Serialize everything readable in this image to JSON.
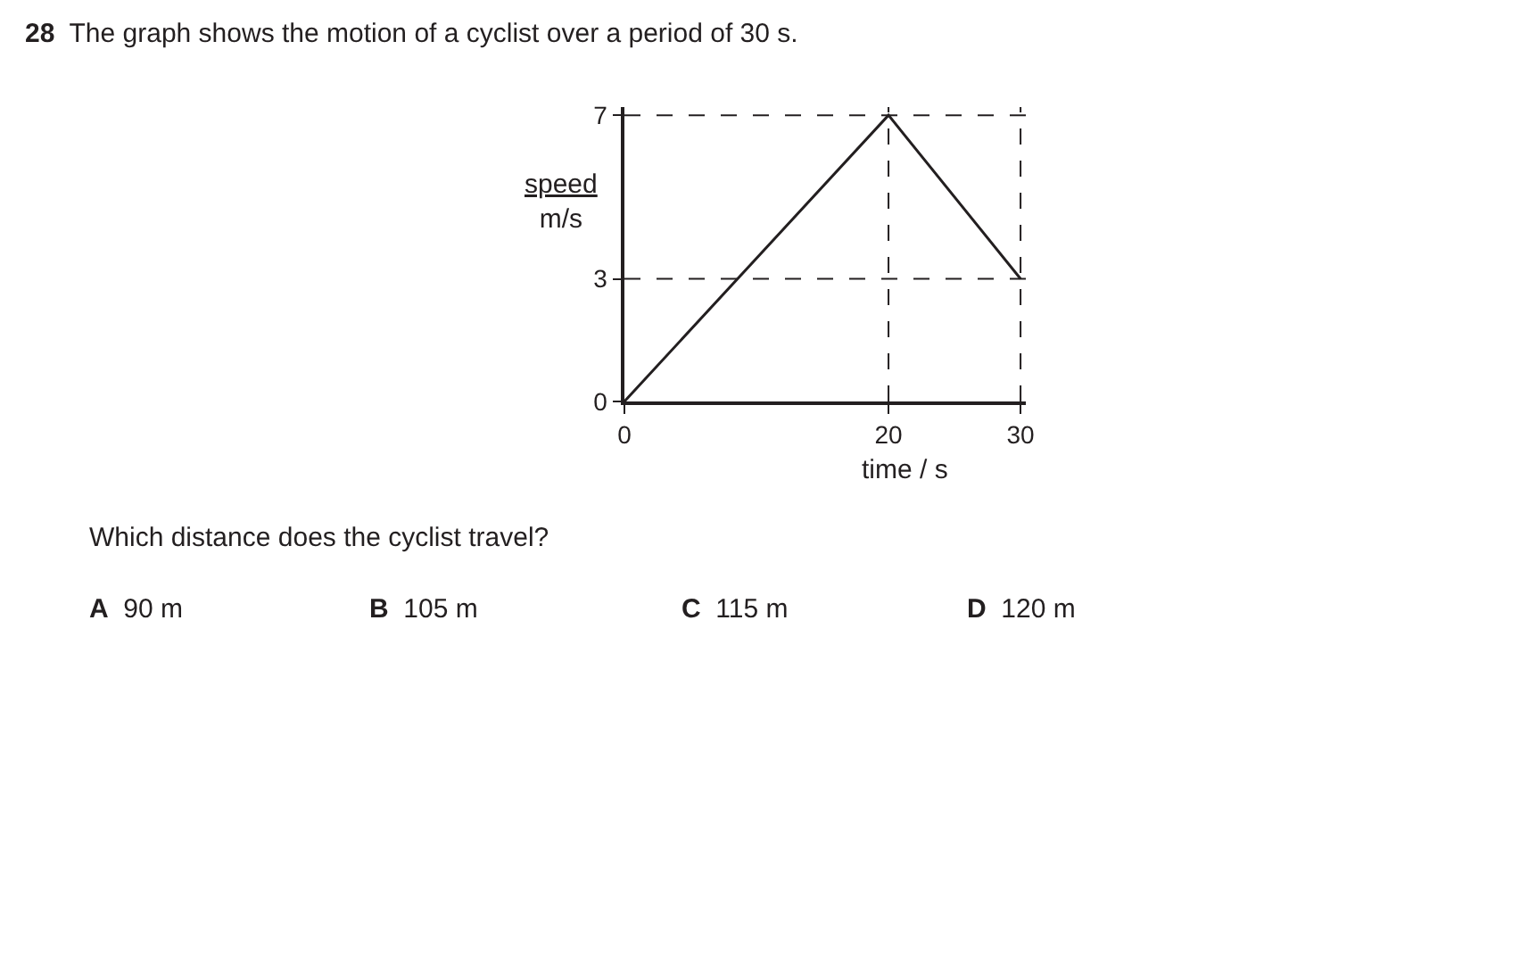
{
  "chart_data": {
    "type": "line",
    "title": "28  The graph shows the motion of a cyclist over a period of 30 s.",
    "xlabel": "time / s",
    "ylabel": "speed\nm/s",
    "x": [
      0,
      20,
      30
    ],
    "series": [
      {
        "color": "#231f20",
        "values": [
          0,
          7,
          3
        ]
      }
    ],
    "xlim": [
      0,
      30.4
    ],
    "xticks": [
      0,
      20,
      30
    ],
    "ylim": [
      0,
      7.2
    ],
    "yticks": [
      0,
      3,
      7
    ],
    "grid": false,
    "marker": "none",
    "line_style": "solid",
    "ref_lines": [
      {
        "axis": "y",
        "value": 7,
        "line_style": "dashed",
        "color": "#231f20"
      },
      {
        "axis": "y",
        "value": 3,
        "line_style": "dashed",
        "color": "#231f20"
      },
      {
        "axis": "x",
        "value": 20,
        "line_style": "dashed",
        "color": "#231f20"
      },
      {
        "axis": "x",
        "value": 30,
        "line_style": "dashed",
        "color": "#231f20"
      }
    ],
    "annotations": [
      "Which distance does the cyclist travel?",
      "A   90 m",
      "B   105 m",
      "C   115 m",
      "D   120 m"
    ]
  }
}
